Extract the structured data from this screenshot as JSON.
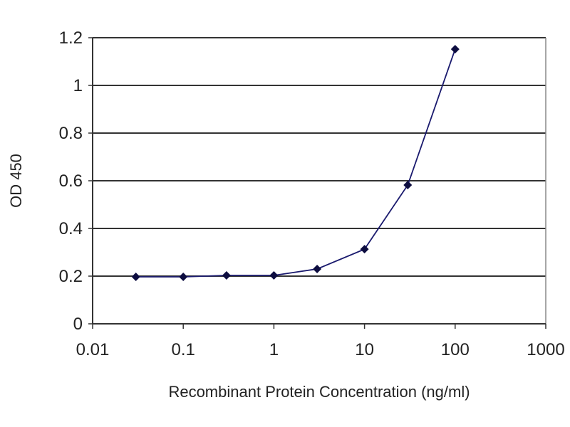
{
  "chart_data": {
    "type": "line",
    "title": "",
    "xlabel": "Recombinant Protein Concentration (ng/ml)",
    "ylabel": "OD 450",
    "x_scale": "log",
    "xlim": [
      0.01,
      1000
    ],
    "ylim": [
      0,
      1.2
    ],
    "x_ticks": [
      "0.01",
      "0.1",
      "1",
      "10",
      "100",
      "1000"
    ],
    "y_ticks": [
      "0",
      "0.2",
      "0.4",
      "0.6",
      "0.8",
      "1",
      "1.2"
    ],
    "grid": "horizontal",
    "legend": "none",
    "series": [
      {
        "color": "#1a1a6e",
        "x": [
          0.03,
          0.1,
          0.3,
          1,
          3,
          10,
          30,
          100
        ],
        "y": [
          0.197,
          0.197,
          0.203,
          0.203,
          0.23,
          0.313,
          0.582,
          1.152
        ]
      }
    ]
  }
}
